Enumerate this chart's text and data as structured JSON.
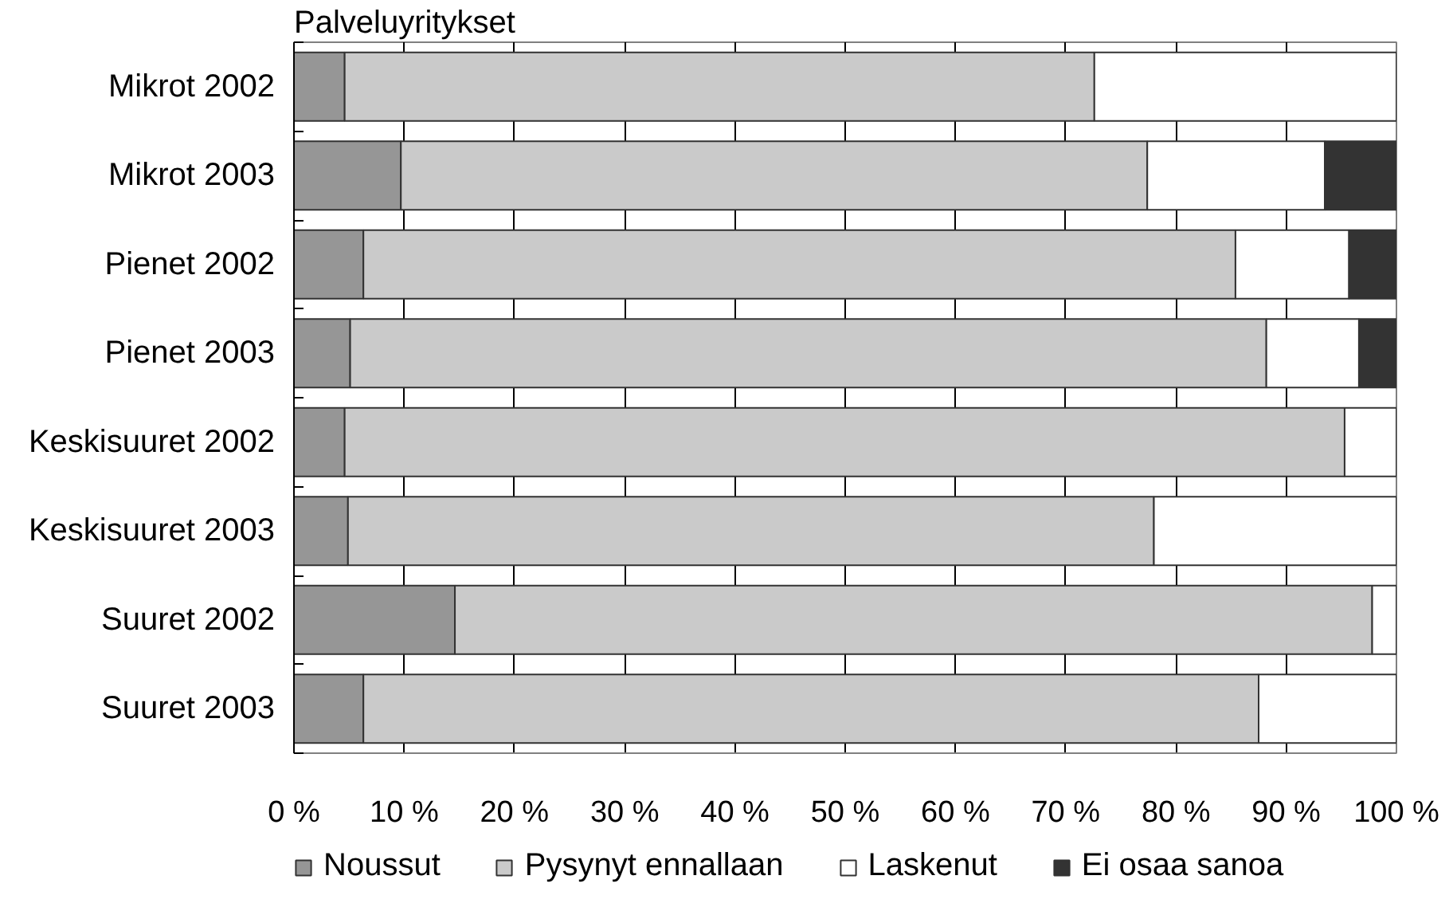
{
  "chart_data": {
    "type": "bar",
    "orientation": "horizontal",
    "stacked": true,
    "title": "Palveluyritykset",
    "categories": [
      "Mikrot 2002",
      "Mikrot 2003",
      "Pienet 2002",
      "Pienet 2003",
      "Keskisuuret 2002",
      "Keskisuuret 2003",
      "Suuret 2002",
      "Suuret 2003"
    ],
    "series": [
      {
        "name": "Noussut",
        "color": "#969696",
        "values": [
          4.6,
          9.7,
          6.3,
          5.1,
          4.6,
          4.9,
          14.6,
          6.3
        ]
      },
      {
        "name": "Pysynyt ennallaan",
        "color": "#cacaca",
        "values": [
          68.0,
          67.7,
          79.1,
          83.1,
          90.7,
          73.1,
          83.2,
          81.2
        ]
      },
      {
        "name": "Laskenut",
        "color": "#ffffff",
        "values": [
          27.4,
          16.1,
          10.3,
          8.4,
          4.7,
          22.0,
          2.2,
          12.5
        ]
      },
      {
        "name": "Ei osaa sanoa",
        "color": "#333333",
        "values": [
          null,
          6.5,
          4.3,
          3.4,
          null,
          null,
          null,
          null
        ]
      }
    ],
    "xlim": [
      0,
      100
    ],
    "xticks": [
      {
        "value": 0,
        "label": "0 %"
      },
      {
        "value": 10,
        "label": "10 %"
      },
      {
        "value": 20,
        "label": "20 %"
      },
      {
        "value": 30,
        "label": "30 %"
      },
      {
        "value": 40,
        "label": "40 %"
      },
      {
        "value": 50,
        "label": "50 %"
      },
      {
        "value": 60,
        "label": "60 %"
      },
      {
        "value": 70,
        "label": "70 %"
      },
      {
        "value": 80,
        "label": "80 %"
      },
      {
        "value": 90,
        "label": "90 %"
      },
      {
        "value": 100,
        "label": "100 %"
      }
    ],
    "grid": "x",
    "legend": "bottom"
  }
}
